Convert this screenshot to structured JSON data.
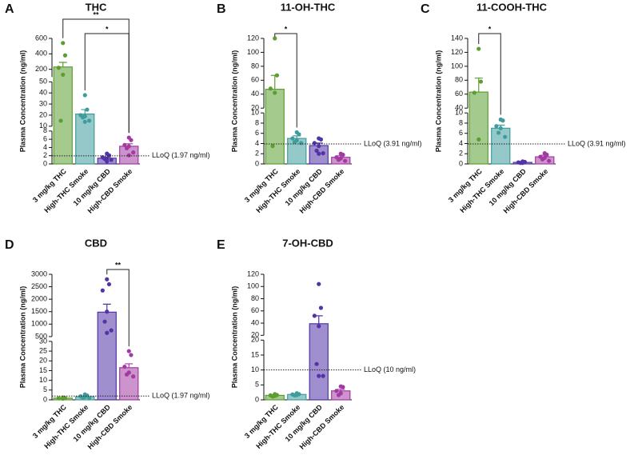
{
  "chart_data": [
    {
      "type": "bar",
      "panel": "A",
      "title": "THC",
      "ylabel": "Plasma Concentration (ng/ml)",
      "categories": [
        "3 mg/kg THC",
        "High-THC Smoke",
        "10 mg/kg CBD",
        "High-CBD Smoke"
      ],
      "values": [
        230,
        21,
        1.4,
        4.3
      ],
      "errors": [
        60,
        4,
        0.3,
        0.6
      ],
      "points": [
        [
          540,
          380,
          220,
          130,
          15
        ],
        [
          38,
          25,
          20,
          19,
          18,
          15,
          14
        ],
        [
          2.5,
          2.1,
          1.6,
          1.3,
          1.2,
          1.0,
          0.6
        ],
        [
          6.4,
          5.8,
          4.6,
          4.3,
          3.8,
          2.8,
          2.1
        ]
      ],
      "colors": [
        "#5c9e31",
        "#3f9c9c",
        "#5234a6",
        "#a23aa2"
      ],
      "segments": [
        {
          "ylim": [
            0,
            8
          ],
          "yticks": [
            0,
            2,
            4,
            6,
            8
          ]
        },
        {
          "ylim": [
            10,
            50
          ],
          "yticks": [
            10,
            20,
            30,
            40,
            50
          ]
        },
        {
          "ylim": [
            100,
            600
          ],
          "yticks": [
            200,
            400,
            600
          ]
        }
      ],
      "lloq": {
        "value": 1.97,
        "label": "LLoQ (1.97 ng/ml)"
      },
      "significance": [
        {
          "from": 0,
          "to": 3,
          "label": "**"
        },
        {
          "from": 1,
          "to": 3,
          "label": "*"
        }
      ]
    },
    {
      "type": "bar",
      "panel": "B",
      "title": "11-OH-THC",
      "ylabel": "Plasma Concentration (ng/ml)",
      "categories": [
        "3 mg/kg THC",
        "High-THC Smoke",
        "10 mg/kg CBD",
        "High-CBD Smoke"
      ],
      "values": [
        47,
        5.0,
        3.6,
        1.3
      ],
      "errors": [
        20,
        0.5,
        0.5,
        0.3
      ],
      "points": [
        [
          120,
          67,
          48,
          42,
          3.5
        ],
        [
          6.2,
          5.8,
          5.0,
          4.6,
          4.3,
          4.1
        ],
        [
          5.0,
          4.8,
          4.1,
          3.5,
          2.6,
          2.1,
          2.0
        ],
        [
          2.0,
          1.8,
          1.3,
          1.1,
          0.8,
          0.6
        ]
      ],
      "colors": [
        "#5c9e31",
        "#3f9c9c",
        "#5234a6",
        "#a23aa2"
      ],
      "segments": [
        {
          "ylim": [
            0,
            10
          ],
          "yticks": [
            0,
            2,
            4,
            6,
            8,
            10
          ]
        },
        {
          "ylim": [
            20,
            120
          ],
          "yticks": [
            20,
            40,
            60,
            80,
            100,
            120
          ]
        }
      ],
      "lloq": {
        "value": 3.91,
        "label": "LLoQ (3.91 ng/ml)"
      },
      "significance": [
        {
          "from": 0,
          "to": 1,
          "label": "*"
        }
      ]
    },
    {
      "type": "bar",
      "panel": "C",
      "title": "11-COOH-THC",
      "ylabel": "Plasma Concentration (ng/ml)",
      "categories": [
        "3 mg/kg THC",
        "High-THC Smoke",
        "10 mg/kg CBD",
        "High-CBD Smoke"
      ],
      "values": [
        63,
        7.0,
        0.3,
        1.4
      ],
      "errors": [
        20,
        0.6,
        0.1,
        0.3
      ],
      "points": [
        [
          125,
          78,
          62,
          4.8
        ],
        [
          8.7,
          8.5,
          7.4,
          7.0,
          6.1,
          5.3
        ],
        [
          0.5,
          0.4,
          0.3,
          0.2,
          0.2
        ],
        [
          2.1,
          1.8,
          1.4,
          1.2,
          0.9,
          0.6
        ]
      ],
      "colors": [
        "#5c9e31",
        "#3f9c9c",
        "#5234a6",
        "#a23aa2"
      ],
      "segments": [
        {
          "ylim": [
            0,
            10
          ],
          "yticks": [
            0,
            2,
            4,
            6,
            8,
            10
          ]
        },
        {
          "ylim": [
            40,
            140
          ],
          "yticks": [
            40,
            60,
            80,
            100,
            120,
            140
          ]
        }
      ],
      "lloq": {
        "value": 3.91,
        "label": "LLoQ (3.91 ng/ml)"
      },
      "significance": [
        {
          "from": 0,
          "to": 1,
          "label": "*"
        }
      ]
    },
    {
      "type": "bar",
      "panel": "D",
      "title": "CBD",
      "ylabel": "Plasma Concentration (ng/ml)",
      "categories": [
        "3 mg/kg THC",
        "High-THC Smoke",
        "10 mg/kg CBD",
        "High-CBD Smoke"
      ],
      "values": [
        0.9,
        1.6,
        1480,
        16.5
      ],
      "errors": [
        0.2,
        0.3,
        320,
        2
      ],
      "points": [
        [
          1.2,
          0.9,
          0.8,
          0.6
        ],
        [
          2.8,
          2.2,
          1.8,
          1.5,
          1.1,
          0.9
        ],
        [
          2800,
          2600,
          2350,
          1500,
          1100,
          750,
          650
        ],
        [
          25,
          23,
          17,
          14,
          13,
          12
        ]
      ],
      "colors": [
        "#5c9e31",
        "#3f9c9c",
        "#5234a6",
        "#a23aa2"
      ],
      "segments": [
        {
          "ylim": [
            0,
            30
          ],
          "yticks": [
            0,
            5,
            10,
            15,
            20,
            25,
            30
          ]
        },
        {
          "ylim": [
            500,
            3000
          ],
          "yticks": [
            500,
            1000,
            1500,
            2000,
            2500,
            3000
          ]
        }
      ],
      "lloq": {
        "value": 1.97,
        "label": "LLoQ (1.97 ng/ml)"
      },
      "significance": [
        {
          "from": 2,
          "to": 3,
          "label": "**"
        }
      ]
    },
    {
      "type": "bar",
      "panel": "E",
      "title": "7-OH-CBD",
      "ylabel": "Plasma Concentration (ng/ml)",
      "categories": [
        "3 mg/kg THC",
        "High-THC Smoke",
        "10 mg/kg CBD",
        "High-CBD Smoke"
      ],
      "values": [
        1.5,
        1.8,
        39,
        3.0
      ],
      "errors": [
        0.2,
        0.2,
        13,
        0.5
      ],
      "points": [
        [
          1.9,
          1.6,
          1.5,
          1.3,
          1.1
        ],
        [
          2.2,
          1.9,
          1.8,
          1.6,
          1.5
        ],
        [
          104,
          65,
          52,
          35,
          12,
          8,
          8
        ],
        [
          4.5,
          4.3,
          3.0,
          2.2,
          1.6
        ]
      ],
      "colors": [
        "#5c9e31",
        "#3f9c9c",
        "#5234a6",
        "#a23aa2"
      ],
      "segments": [
        {
          "ylim": [
            0,
            20
          ],
          "yticks": [
            0,
            5,
            10,
            15,
            20
          ]
        },
        {
          "ylim": [
            20,
            120
          ],
          "yticks": [
            20,
            40,
            60,
            80,
            100,
            120
          ]
        }
      ],
      "lloq": {
        "value": 10,
        "label": "LLoQ (10 ng/ml)"
      },
      "significance": []
    }
  ]
}
